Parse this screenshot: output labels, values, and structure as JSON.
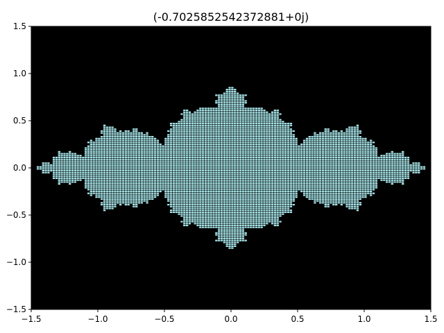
{
  "chart_data": {
    "type": "heatmap",
    "title": "(-0.7025852542372881+0j)",
    "xlabel": "",
    "ylabel": "",
    "xlim": [
      -1.5,
      1.5
    ],
    "ylim": [
      -1.5,
      1.5
    ],
    "x_ticks": [
      -1.5,
      -1.0,
      -0.5,
      0.0,
      0.5,
      1.0,
      1.5
    ],
    "y_ticks": [
      -1.5,
      -1.0,
      -0.5,
      0.0,
      0.5,
      1.0,
      1.5
    ],
    "x_tick_labels": [
      "−1.5",
      "−1.0",
      "−0.5",
      "0.0",
      "0.5",
      "1.0",
      "1.5"
    ],
    "y_tick_labels": [
      "−1.5",
      "−1.0",
      "−0.5",
      "0.0",
      "0.5",
      "1.0",
      "1.5"
    ],
    "julia_constant": {
      "re": -0.7025852542372881,
      "im": 0
    },
    "max_iterations": 60,
    "grid_resolution": 0.02,
    "grid": false,
    "colors": {
      "background": "#000000",
      "filled_set": "#a8e6ea",
      "cell_edge": "#000000"
    }
  }
}
